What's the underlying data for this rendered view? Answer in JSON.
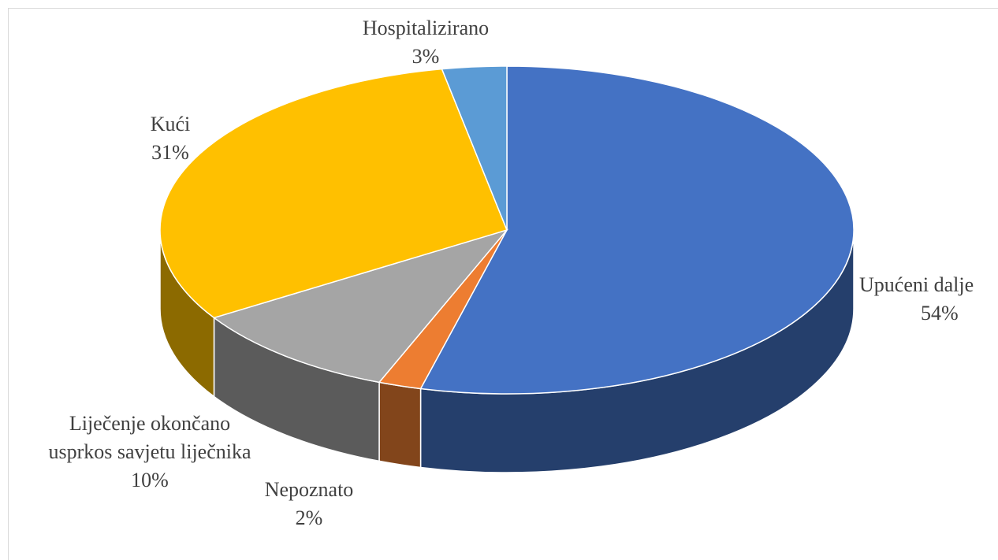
{
  "chart_data": {
    "type": "pie",
    "categories": [
      "Upućeni dalje",
      "Nepoznato",
      "Liječenje okončano usprkos savjetu liječnika",
      "Kući",
      "Hospitalizirano"
    ],
    "values": [
      54,
      2,
      10,
      31,
      3
    ],
    "value_labels": [
      "54%",
      "2%",
      "10%",
      "31%",
      "3%"
    ],
    "colors": [
      "#4472c4",
      "#ed7d31",
      "#a5a5a5",
      "#ffc000",
      "#5b9bd5"
    ]
  }
}
